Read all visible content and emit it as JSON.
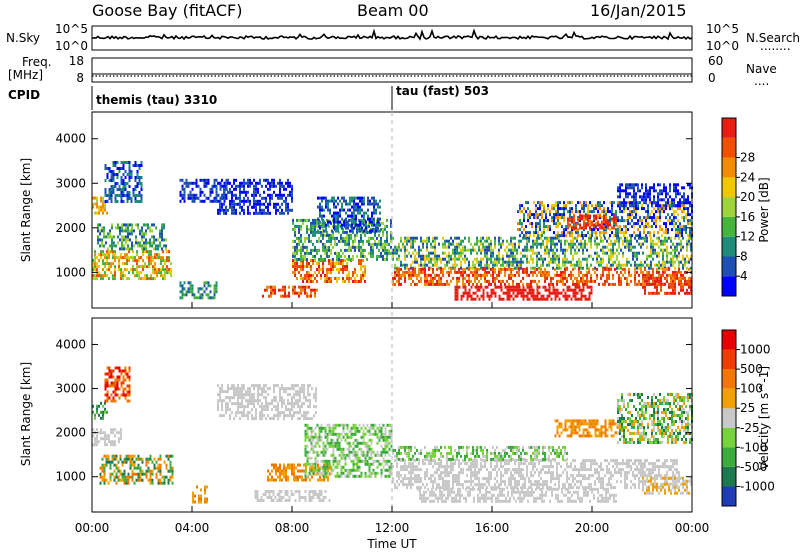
{
  "header": {
    "station": "Goose Bay (fitACF)",
    "beam": "Beam 00",
    "date": "16/Jan/2015"
  },
  "noise_panel": {
    "left_label": "N.Sky",
    "left_ticks": [
      "10^5",
      "10^0"
    ],
    "right_ticks": [
      "10^5",
      "10^0"
    ],
    "right_label": "N.Search",
    "right_legend": "........"
  },
  "freq_panel": {
    "left_label_1": "Freq.",
    "left_label_2": "[MHz]",
    "left_ticks": [
      "18",
      "8"
    ],
    "right_ticks": [
      "60",
      "0"
    ],
    "right_label": "Nave",
    "right_legend": "...."
  },
  "cpid": {
    "label": "CPID",
    "segments": [
      {
        "name": "themis (tau) 3310",
        "start_hour": 0
      },
      {
        "name": "tau (fast) 503",
        "start_hour": 12
      }
    ]
  },
  "chart_data": [
    {
      "type": "heatmap",
      "name": "power",
      "ylabel": "Slant Range [km]",
      "ylim": [
        200,
        4600
      ],
      "yticks": [
        "1000",
        "2000",
        "3000",
        "4000"
      ],
      "xlim_hours": [
        0,
        24
      ],
      "colorbar": {
        "label": "Power [dB]",
        "ticks": [
          "4",
          "8",
          "12",
          "16",
          "20",
          "24",
          "28"
        ],
        "colors": [
          "#0000ff",
          "#1e50b4",
          "#1e8c78",
          "#46b43c",
          "#a0d23c",
          "#f0c800",
          "#f08c00",
          "#f05000",
          "#e61e14"
        ]
      },
      "regions": [
        {
          "t0": 0.0,
          "t1": 0.6,
          "r0": 2300,
          "r1": 2700,
          "levels": [
            4,
            5,
            6
          ]
        },
        {
          "t0": 0.0,
          "t1": 3.2,
          "r0": 850,
          "r1": 1500,
          "levels": [
            3,
            4,
            5,
            6,
            7
          ]
        },
        {
          "t0": 0.2,
          "t1": 3.0,
          "r0": 1500,
          "r1": 2100,
          "levels": [
            1,
            2,
            3,
            4
          ]
        },
        {
          "t0": 0.5,
          "t1": 2.0,
          "r0": 2600,
          "r1": 3500,
          "levels": [
            0,
            1,
            2
          ]
        },
        {
          "t0": 3.5,
          "t1": 5.0,
          "r0": 400,
          "r1": 800,
          "levels": [
            1,
            2,
            3
          ]
        },
        {
          "t0": 3.5,
          "t1": 5.5,
          "r0": 2600,
          "r1": 3100,
          "levels": [
            0,
            1
          ]
        },
        {
          "t0": 5.0,
          "t1": 8.0,
          "r0": 2300,
          "r1": 3100,
          "levels": [
            0,
            1
          ]
        },
        {
          "t0": 6.8,
          "t1": 9.0,
          "r0": 450,
          "r1": 700,
          "levels": [
            6,
            7,
            8
          ]
        },
        {
          "t0": 8.0,
          "t1": 11.0,
          "r0": 800,
          "r1": 1300,
          "levels": [
            5,
            6,
            7,
            8
          ]
        },
        {
          "t0": 8.0,
          "t1": 12.0,
          "r0": 1300,
          "r1": 2200,
          "levels": [
            1,
            2,
            3,
            4
          ]
        },
        {
          "t0": 9.0,
          "t1": 11.5,
          "r0": 1900,
          "r1": 2700,
          "levels": [
            0,
            1,
            2
          ]
        },
        {
          "t0": 12.0,
          "t1": 24.0,
          "r0": 1100,
          "r1": 1800,
          "levels": [
            1,
            2,
            3,
            4,
            5
          ]
        },
        {
          "t0": 12.0,
          "t1": 24.0,
          "r0": 750,
          "r1": 1100,
          "levels": [
            6,
            7,
            8
          ]
        },
        {
          "t0": 14.5,
          "t1": 20.0,
          "r0": 400,
          "r1": 700,
          "levels": [
            8
          ]
        },
        {
          "t0": 17.0,
          "t1": 24.0,
          "r0": 1800,
          "r1": 2600,
          "levels": [
            0,
            1,
            2,
            5,
            6
          ]
        },
        {
          "t0": 19.0,
          "t1": 21.0,
          "r0": 2000,
          "r1": 2300,
          "levels": [
            7,
            8
          ]
        },
        {
          "t0": 21.0,
          "t1": 24.0,
          "r0": 2500,
          "r1": 3000,
          "levels": [
            0,
            1
          ]
        },
        {
          "t0": 22.0,
          "t1": 24.0,
          "r0": 500,
          "r1": 900,
          "levels": [
            7,
            8
          ]
        }
      ]
    },
    {
      "type": "heatmap",
      "name": "velocity",
      "ylabel": "Slant Range [km]",
      "ylim": [
        200,
        4600
      ],
      "yticks": [
        "1000",
        "2000",
        "3000",
        "4000"
      ],
      "xlim_hours": [
        0,
        24
      ],
      "xticks": [
        "00:00",
        "04:00",
        "08:00",
        "12:00",
        "16:00",
        "20:00",
        "00:00"
      ],
      "xlabel": "Time UT",
      "colorbar": {
        "label": "Velocity [m s^-1]",
        "ticks": [
          "1000",
          "500",
          "100",
          "25",
          "-25",
          "-100",
          "-500",
          "-1000"
        ],
        "colors": [
          "#1e3cb4",
          "#1e7850",
          "#3caa3c",
          "#78d23c",
          "#c8c8c8",
          "#f0a000",
          "#f07800",
          "#f03c00",
          "#e60000"
        ]
      },
      "regions": [
        {
          "t0": 0.0,
          "t1": 0.6,
          "r0": 2300,
          "r1": 2700,
          "levels": [
            1,
            2,
            3
          ]
        },
        {
          "t0": 0.0,
          "t1": 1.2,
          "r0": 1700,
          "r1": 2100,
          "levels": [
            4
          ]
        },
        {
          "t0": 0.3,
          "t1": 3.2,
          "r0": 850,
          "r1": 1500,
          "levels": [
            5,
            6,
            1,
            2
          ]
        },
        {
          "t0": 0.5,
          "t1": 1.5,
          "r0": 2700,
          "r1": 3500,
          "levels": [
            6,
            7,
            8
          ]
        },
        {
          "t0": 4.0,
          "t1": 4.6,
          "r0": 400,
          "r1": 800,
          "levels": [
            5,
            6
          ]
        },
        {
          "t0": 5.0,
          "t1": 9.0,
          "r0": 2300,
          "r1": 3100,
          "levels": [
            4
          ]
        },
        {
          "t0": 6.5,
          "t1": 9.5,
          "r0": 450,
          "r1": 700,
          "levels": [
            4
          ]
        },
        {
          "t0": 7.0,
          "t1": 9.5,
          "r0": 900,
          "r1": 1300,
          "levels": [
            5,
            6
          ]
        },
        {
          "t0": 8.5,
          "t1": 12.0,
          "r0": 1000,
          "r1": 2200,
          "levels": [
            2,
            3,
            4
          ]
        },
        {
          "t0": 12.0,
          "t1": 23.5,
          "r0": 750,
          "r1": 1400,
          "levels": [
            4
          ]
        },
        {
          "t0": 13.0,
          "t1": 21.0,
          "r0": 450,
          "r1": 750,
          "levels": [
            4
          ]
        },
        {
          "t0": 12.0,
          "t1": 19.0,
          "r0": 1400,
          "r1": 1700,
          "levels": [
            2,
            3,
            4
          ]
        },
        {
          "t0": 18.5,
          "t1": 21.0,
          "r0": 1900,
          "r1": 2300,
          "levels": [
            5,
            6
          ]
        },
        {
          "t0": 21.0,
          "t1": 24.0,
          "r0": 1800,
          "r1": 2900,
          "levels": [
            1,
            2,
            3,
            4,
            5
          ]
        },
        {
          "t0": 22.0,
          "t1": 24.0,
          "r0": 600,
          "r1": 1000,
          "levels": [
            4,
            5
          ]
        }
      ]
    }
  ]
}
